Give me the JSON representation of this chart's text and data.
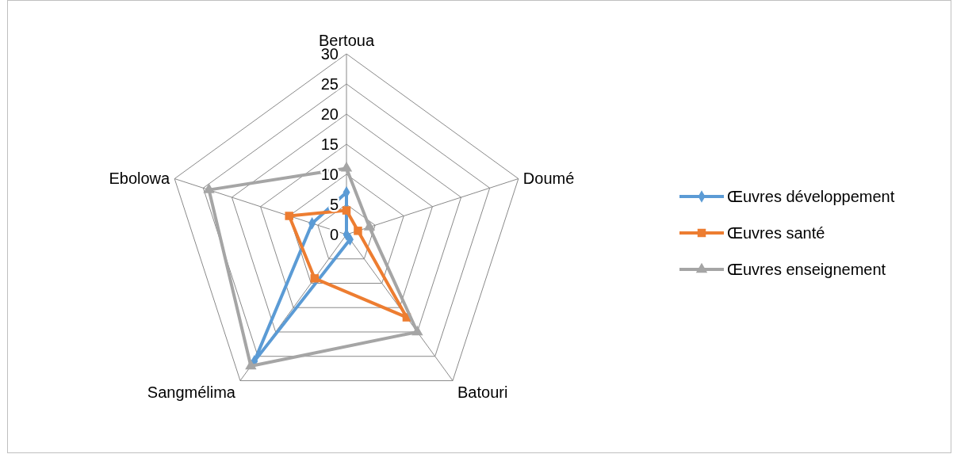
{
  "chart_data": {
    "type": "radar",
    "categories": [
      "Bertoua",
      "Doumé",
      "Batouri",
      "Sangmélima",
      "Ebolowa"
    ],
    "series": [
      {
        "name": "Œuvres développement",
        "color": "#5b9bd5",
        "values": [
          7,
          0,
          1,
          26,
          6
        ],
        "marker": "diamond"
      },
      {
        "name": "Œuvres santé",
        "color": "#ed7d31",
        "values": [
          4,
          2,
          17,
          9,
          10
        ],
        "marker": "square"
      },
      {
        "name": "Œuvres enseignement",
        "color": "#a5a5a5",
        "values": [
          11,
          4,
          20,
          27,
          24
        ],
        "marker": "triangle"
      }
    ],
    "ylim": [
      0,
      30
    ],
    "yticks": [
      0,
      5,
      10,
      15,
      20,
      25,
      30
    ],
    "grid": true,
    "legend": "right"
  }
}
